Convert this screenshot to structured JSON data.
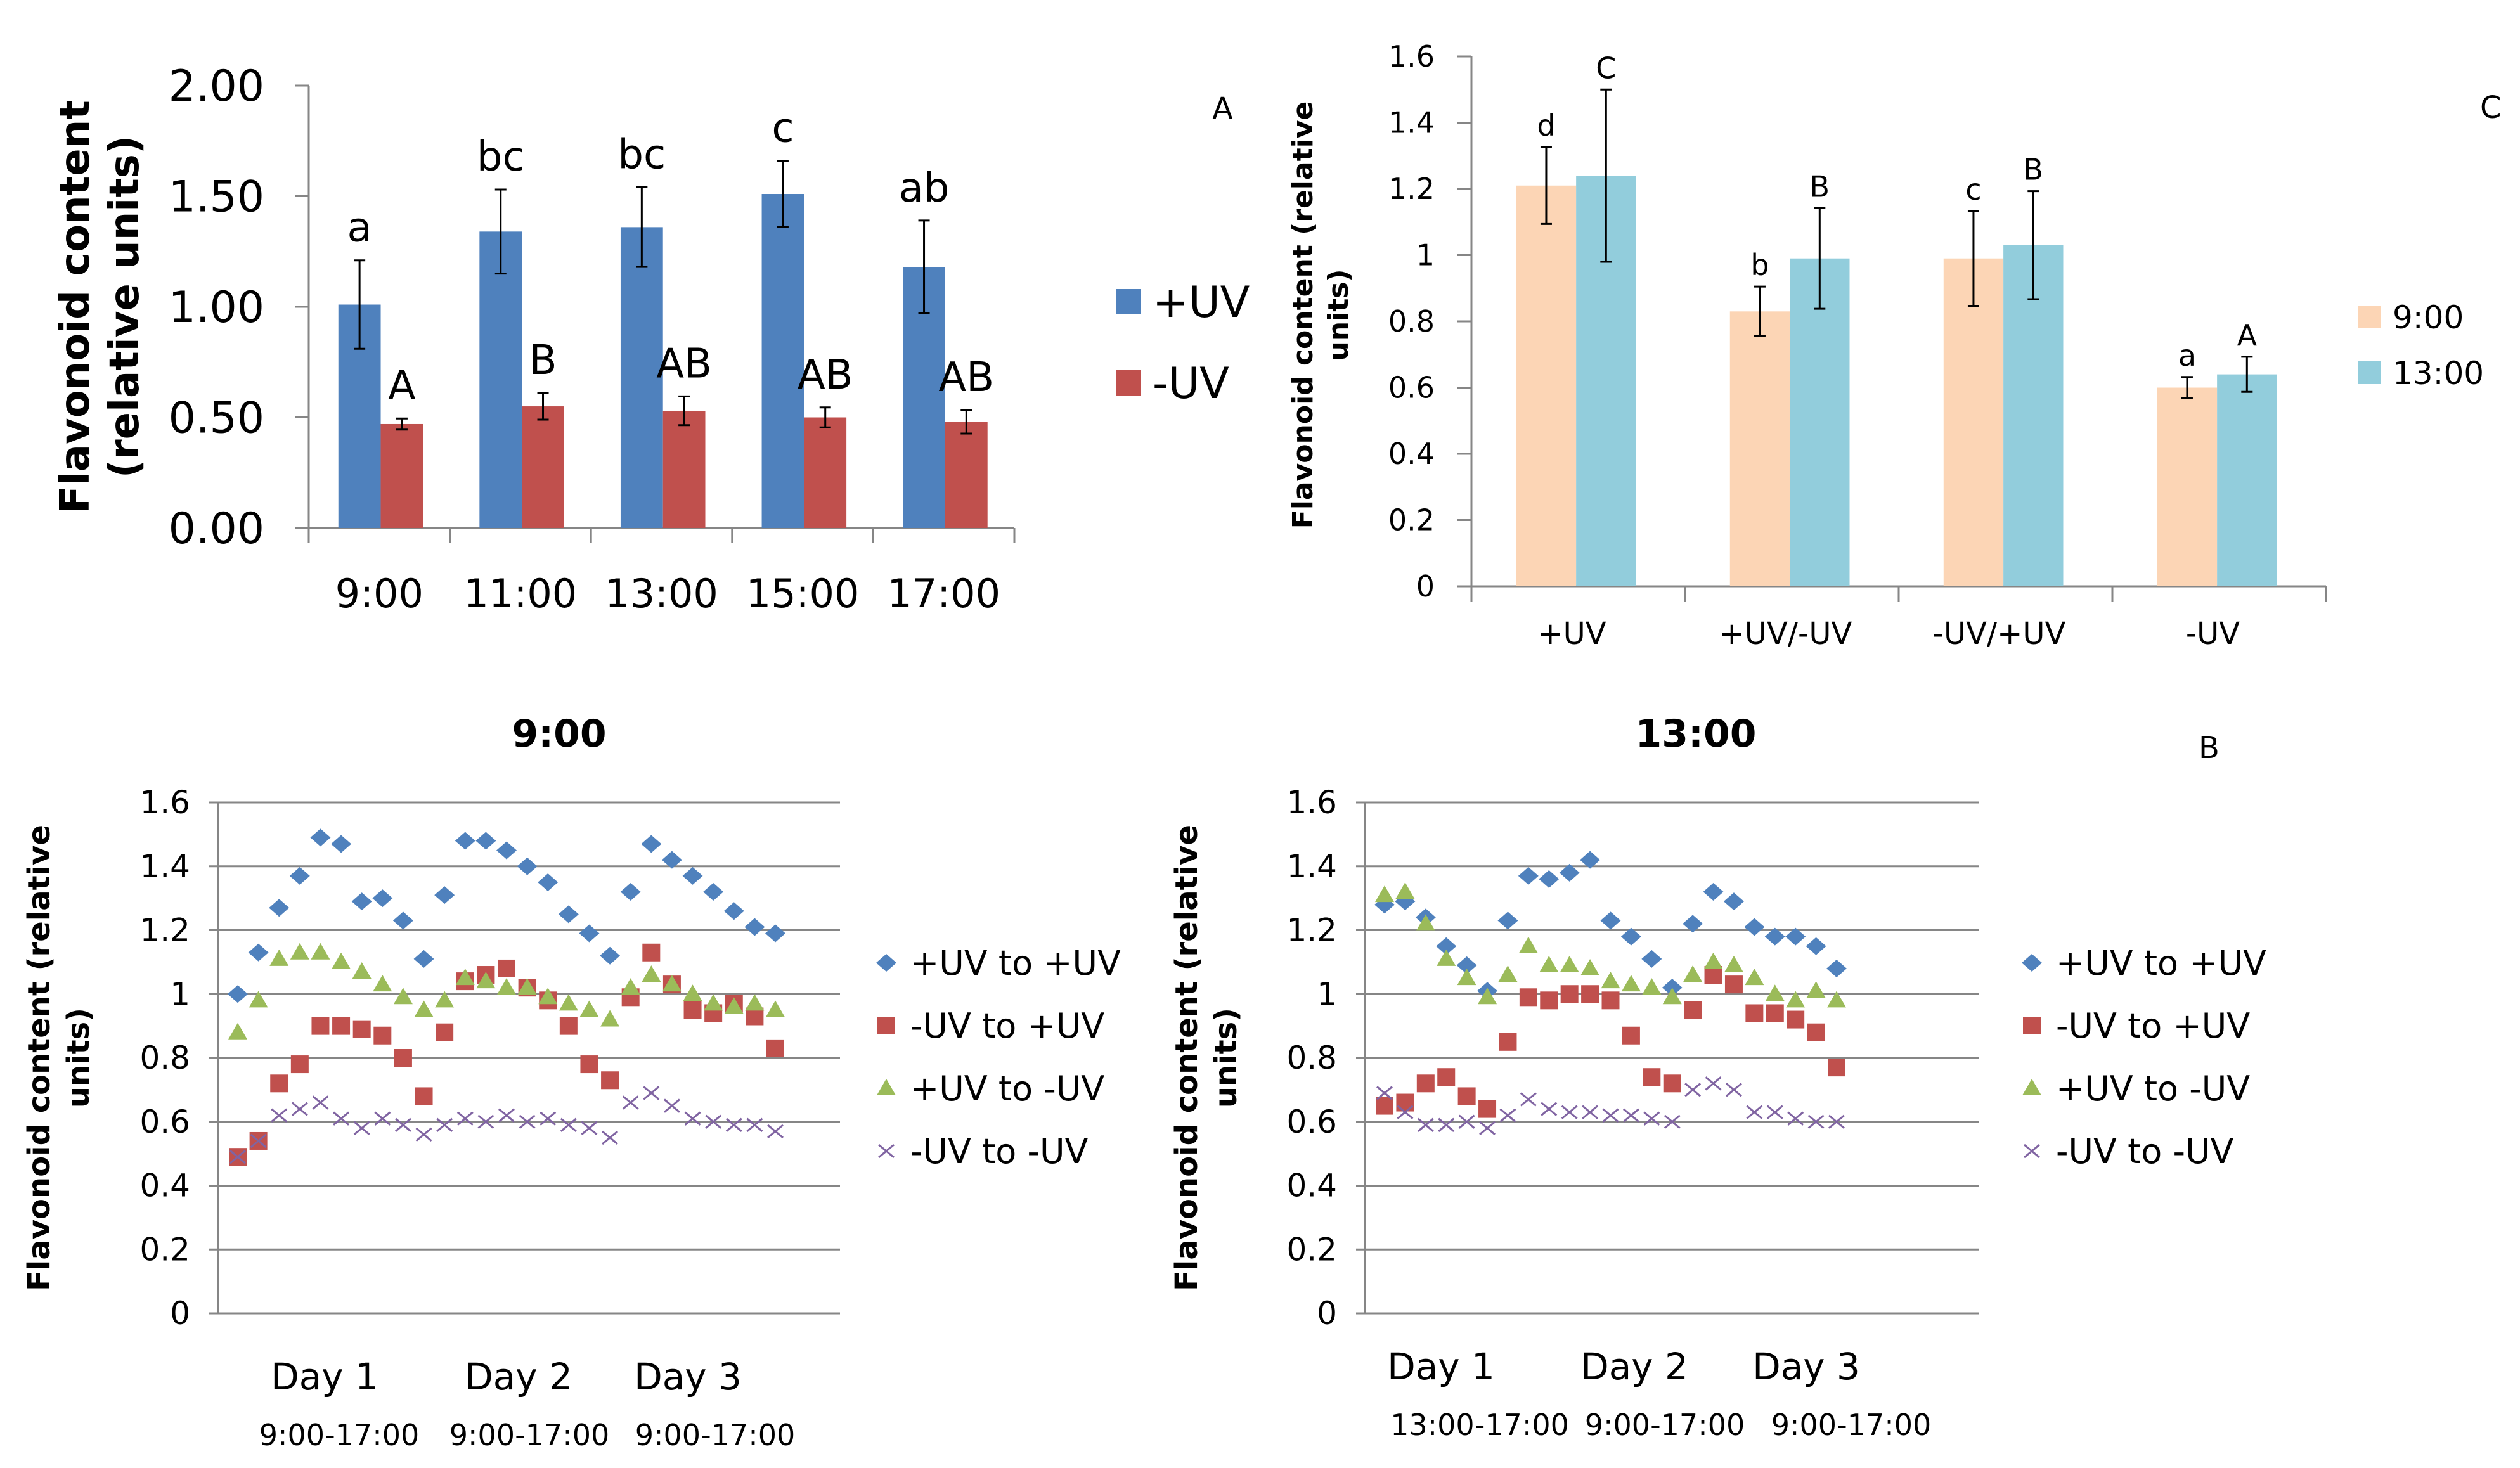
{
  "chart_data": [
    {
      "id": "A",
      "type": "bar",
      "panel_label": "A",
      "title": "",
      "xlabel": "",
      "ylabel": "Flavonoid content (relative units)",
      "ylabel_lines": [
        "Flavonoid content",
        "(relative units)"
      ],
      "ylim": [
        0,
        2
      ],
      "yticks": [
        0,
        0.5,
        1,
        1.5,
        2
      ],
      "ytick_labels": [
        "0.00",
        "0.50",
        "1.00",
        "1.50",
        "2.00"
      ],
      "categories": [
        "9:00",
        "11:00",
        "13:00",
        "15:00",
        "17:00"
      ],
      "grid": false,
      "legend_position": "right",
      "series": [
        {
          "name": "+UV",
          "color": "#4F81BD",
          "values": [
            1.01,
            1.34,
            1.36,
            1.51,
            1.18
          ],
          "errors": [
            0.2,
            0.19,
            0.18,
            0.15,
            0.21
          ],
          "letters": [
            "a",
            "bc",
            "bc",
            "c",
            "ab"
          ]
        },
        {
          "name": "-UV",
          "color": "#C0504D",
          "values": [
            0.47,
            0.55,
            0.53,
            0.5,
            0.48
          ],
          "errors": [
            0.025,
            0.06,
            0.065,
            0.045,
            0.053
          ],
          "letters": [
            "A",
            "B",
            "AB",
            "AB",
            "AB"
          ]
        }
      ]
    },
    {
      "id": "C",
      "type": "bar",
      "panel_label": "C",
      "title": "",
      "xlabel": "",
      "ylabel": "Flavonoid content (relative units)",
      "ylabel_lines": [
        "Flavonoid content (relative",
        "units)"
      ],
      "ylim": [
        0,
        1.6
      ],
      "yticks": [
        0,
        0.2,
        0.4,
        0.6,
        0.8,
        1,
        1.2,
        1.4,
        1.6
      ],
      "ytick_labels": [
        "0",
        "0.2",
        "0.4",
        "0.6",
        "0.8",
        "1",
        "1.2",
        "1.4",
        "1.6"
      ],
      "categories": [
        "+UV",
        "+UV/-UV",
        "-UV/+UV",
        "-UV"
      ],
      "grid": false,
      "legend_position": "right",
      "series": [
        {
          "name": "9:00",
          "color": "#FCD5B5",
          "values": [
            1.21,
            0.83,
            0.99,
            0.6
          ],
          "errors": [
            0.116,
            0.075,
            0.143,
            0.032
          ],
          "letters": [
            "d",
            "b",
            "c",
            "a"
          ]
        },
        {
          "name": "13:00",
          "color": "#92CDDC",
          "values": [
            1.24,
            0.99,
            1.03,
            0.64
          ],
          "errors": [
            0.26,
            0.152,
            0.163,
            0.053
          ],
          "letters": [
            "C",
            "B",
            "B",
            "A"
          ]
        }
      ]
    },
    {
      "id": "B1",
      "type": "scatter",
      "title": "9:00",
      "xlabel": "",
      "ylabel": "Flavonoid content (relative units)",
      "ylabel_lines": [
        "Flavonoid content (relative",
        "units)"
      ],
      "ylim": [
        0,
        1.6
      ],
      "yticks": [
        0,
        0.2,
        0.4,
        0.6,
        0.8,
        1,
        1.2,
        1.4,
        1.6
      ],
      "ytick_labels": [
        "0",
        "0.2",
        "0.4",
        "0.6",
        "0.8",
        "1",
        "1.2",
        "1.4",
        "1.6"
      ],
      "x_groups": [
        {
          "day": "Day 1",
          "range": "9:00-17:00"
        },
        {
          "day": "Day 2",
          "range": "9:00-17:00"
        },
        {
          "day": "Day 3",
          "range": "9:00-17:00"
        }
      ],
      "grid": true,
      "legend_position": "right",
      "series": [
        {
          "name": "+UV to +UV",
          "marker": "diamond",
          "color": "#4F81BD",
          "values": [
            1.0,
            1.13,
            1.27,
            1.37,
            1.49,
            1.47,
            1.29,
            1.3,
            1.23,
            1.11,
            1.31,
            1.48,
            1.48,
            1.45,
            1.4,
            1.35,
            1.25,
            1.19,
            1.12,
            1.32,
            1.47,
            1.42,
            1.37,
            1.32,
            1.26,
            1.21,
            1.19
          ]
        },
        {
          "name": "-UV to +UV",
          "marker": "square",
          "color": "#C0504D",
          "values": [
            0.49,
            0.54,
            0.72,
            0.78,
            0.9,
            0.9,
            0.89,
            0.87,
            0.8,
            0.68,
            0.88,
            1.04,
            1.06,
            1.08,
            1.02,
            0.98,
            0.9,
            0.78,
            0.73,
            0.99,
            1.13,
            1.03,
            0.95,
            0.94,
            0.97,
            0.93,
            0.83
          ]
        },
        {
          "name": "+UV to -UV",
          "marker": "triangle",
          "color": "#9BBB59",
          "values": [
            0.88,
            0.98,
            1.11,
            1.13,
            1.13,
            1.1,
            1.07,
            1.03,
            0.99,
            0.95,
            0.98,
            1.05,
            1.04,
            1.02,
            1.02,
            0.99,
            0.97,
            0.95,
            0.92,
            1.02,
            1.06,
            1.03,
            1.0,
            0.97,
            0.96,
            0.97,
            0.95
          ]
        },
        {
          "name": "-UV to -UV",
          "marker": "x",
          "color": "#8064A2",
          "values": [
            0.49,
            0.54,
            0.62,
            0.64,
            0.66,
            0.61,
            0.58,
            0.61,
            0.59,
            0.56,
            0.59,
            0.61,
            0.6,
            0.62,
            0.6,
            0.61,
            0.59,
            0.58,
            0.55,
            0.66,
            0.69,
            0.65,
            0.61,
            0.6,
            0.59,
            0.59,
            0.57
          ]
        }
      ]
    },
    {
      "id": "B2",
      "type": "scatter",
      "title": "13:00",
      "panel_label": "B",
      "xlabel": "",
      "ylabel": "Flavonoid content (relative units)",
      "ylabel_lines": [
        "Flavonoid content (relative",
        "units)"
      ],
      "ylim": [
        0,
        1.6
      ],
      "yticks": [
        0,
        0.2,
        0.4,
        0.6,
        0.8,
        1,
        1.2,
        1.4,
        1.6
      ],
      "ytick_labels": [
        "0",
        "0.2",
        "0.4",
        "0.6",
        "0.8",
        "1",
        "1.2",
        "1.4",
        "1.6"
      ],
      "x_groups": [
        {
          "day": "Day 1",
          "range": "13:00-17:00"
        },
        {
          "day": "Day 2",
          "range": "9:00-17:00"
        },
        {
          "day": "Day 3",
          "range": "9:00-17:00"
        }
      ],
      "grid": true,
      "legend_position": "right",
      "series": [
        {
          "name": "+UV to +UV",
          "marker": "diamond",
          "color": "#4F81BD",
          "values": [
            1.28,
            1.29,
            1.24,
            1.15,
            1.09,
            1.01,
            1.23,
            1.37,
            1.36,
            1.38,
            1.42,
            1.23,
            1.18,
            1.11,
            1.02,
            1.22,
            1.32,
            1.29,
            1.21,
            1.18,
            1.18,
            1.15,
            1.08
          ]
        },
        {
          "name": "-UV to +UV",
          "marker": "square",
          "color": "#C0504D",
          "values": [
            0.65,
            0.66,
            0.72,
            0.74,
            0.68,
            0.64,
            0.85,
            0.99,
            0.98,
            1.0,
            1.0,
            0.98,
            0.87,
            0.74,
            0.72,
            0.95,
            1.06,
            1.03,
            0.94,
            0.94,
            0.92,
            0.88,
            0.77
          ]
        },
        {
          "name": "+UV to -UV",
          "marker": "triangle",
          "color": "#9BBB59",
          "values": [
            1.31,
            1.32,
            1.22,
            1.11,
            1.05,
            0.99,
            1.06,
            1.15,
            1.09,
            1.09,
            1.08,
            1.04,
            1.03,
            1.02,
            0.99,
            1.06,
            1.1,
            1.09,
            1.05,
            1.0,
            0.98,
            1.01,
            0.98
          ]
        },
        {
          "name": "-UV to -UV",
          "marker": "x",
          "color": "#8064A2",
          "values": [
            0.69,
            0.63,
            0.59,
            0.59,
            0.6,
            0.58,
            0.62,
            0.67,
            0.64,
            0.63,
            0.63,
            0.62,
            0.62,
            0.61,
            0.6,
            0.7,
            0.72,
            0.7,
            0.63,
            0.63,
            0.61,
            0.6,
            0.6
          ]
        }
      ]
    }
  ]
}
